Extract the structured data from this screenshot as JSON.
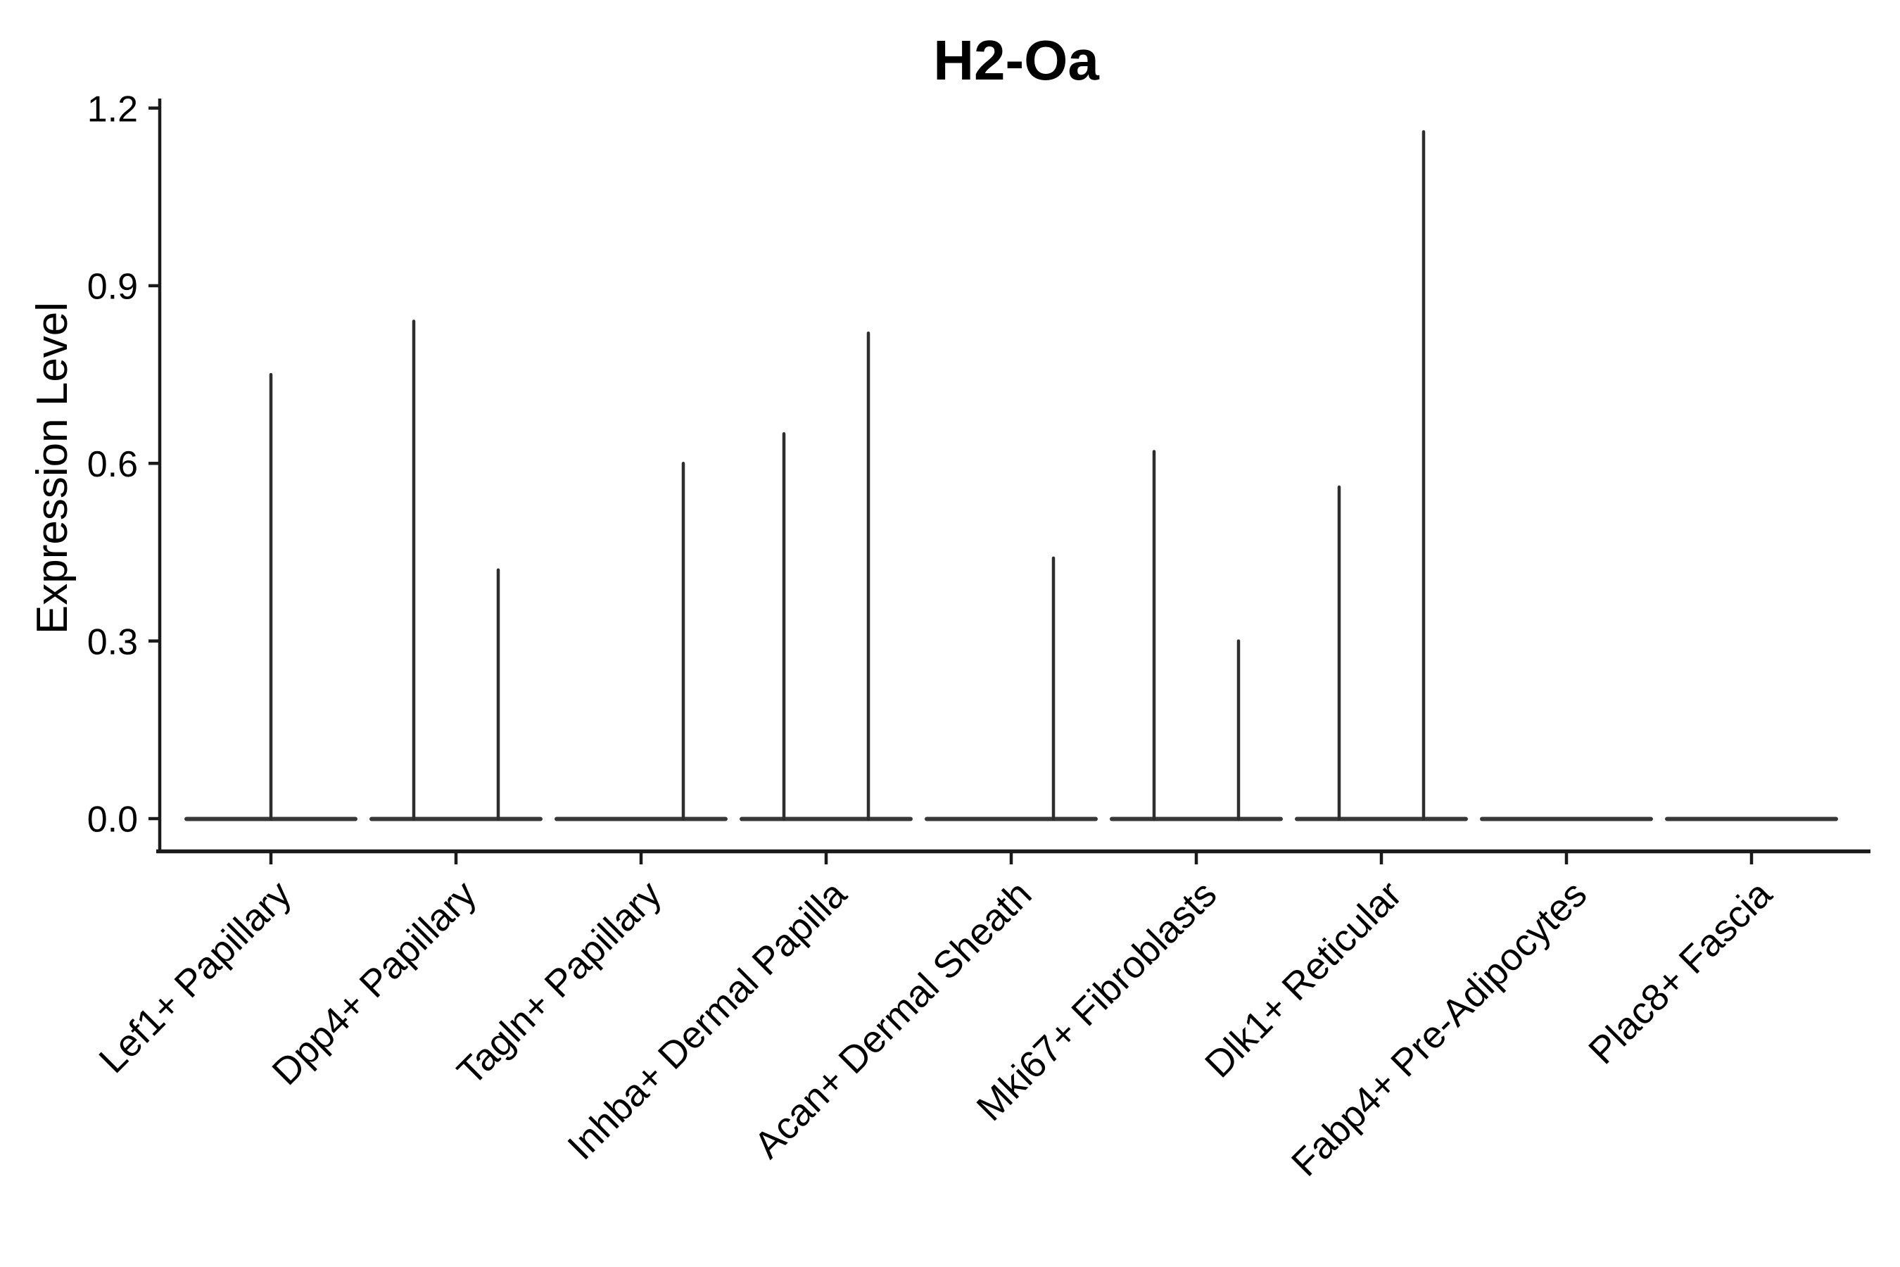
{
  "chart_data": {
    "type": "violin",
    "title": "H2-Oa",
    "ylabel": "Expression Level",
    "xlabel": "",
    "ylim": [
      0.0,
      1.2
    ],
    "yticks": [
      "0.0",
      "0.3",
      "0.6",
      "0.9",
      "1.2"
    ],
    "ytick_values": [
      0.0,
      0.3,
      0.6,
      0.9,
      1.2
    ],
    "grid": false,
    "legend_position": "none",
    "x_tick_rotation_deg": 45,
    "categories": [
      {
        "label": "Lef1+ Papillary",
        "spikes": [
          {
            "offset": 0,
            "max": 0.75
          }
        ]
      },
      {
        "label": "Dpp4+ Papillary",
        "spikes": [
          {
            "offset": -60,
            "max": 0.84
          },
          {
            "offset": 60,
            "max": 0.42
          }
        ]
      },
      {
        "label": "Tagln+ Papillary",
        "spikes": [
          {
            "offset": 60,
            "max": 0.6
          }
        ]
      },
      {
        "label": "Inhba+ Dermal Papilla",
        "spikes": [
          {
            "offset": -60,
            "max": 0.65
          },
          {
            "offset": 60,
            "max": 0.82
          }
        ]
      },
      {
        "label": "Acan+ Dermal Sheath",
        "spikes": [
          {
            "offset": 60,
            "max": 0.44
          }
        ]
      },
      {
        "label": "Mki67+ Fibroblasts",
        "spikes": [
          {
            "offset": -60,
            "max": 0.62
          },
          {
            "offset": 60,
            "max": 0.3
          }
        ]
      },
      {
        "label": "Dlk1+ Reticular",
        "spikes": [
          {
            "offset": -60,
            "max": 0.56
          },
          {
            "offset": 60,
            "max": 1.16
          }
        ]
      },
      {
        "label": "Fabp4+ Pre-Adipocytes",
        "spikes": []
      },
      {
        "label": "Plac8+ Fascia",
        "spikes": []
      }
    ],
    "colors": {
      "background": "#ffffff",
      "violin_line": "#2e2e2e",
      "baseline_line": "#383838",
      "axis_line": "#1a1a1a",
      "text": "#000000"
    }
  }
}
